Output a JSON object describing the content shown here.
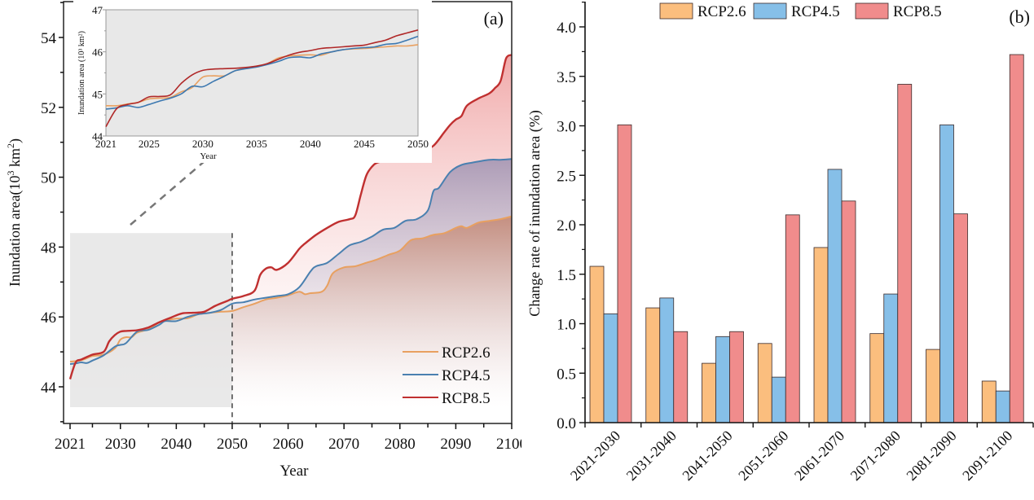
{
  "chart_data": [
    {
      "panel": "(a)",
      "type": "line",
      "title": "",
      "panel_label": "(a)",
      "xlabel": "Year",
      "ylabel": "Inundation area(10³ km²)",
      "xlim": [
        2021,
        2100
      ],
      "ylim": [
        43,
        55
      ],
      "xticks": [
        "2021",
        "2030",
        "2040",
        "2050",
        "2060",
        "2070",
        "2080",
        "2090",
        "2100"
      ],
      "yticks": [
        "44",
        "46",
        "48",
        "50",
        "52",
        "54"
      ],
      "legend_position": "bottom-right",
      "grid": false,
      "highlight_region": {
        "x": [
          2021,
          2050
        ],
        "y_top": 48.4,
        "divider_year": 2050
      },
      "series": [
        {
          "name": "RCP2.6",
          "color": "#E8A060",
          "x": [
            2021,
            2023,
            2025,
            2027,
            2029,
            2030,
            2031,
            2032,
            2033,
            2035,
            2037,
            2038,
            2040,
            2042,
            2044,
            2046,
            2048,
            2050,
            2052,
            2054,
            2056,
            2058,
            2060,
            2062,
            2063,
            2064,
            2066,
            2067,
            2068,
            2070,
            2072,
            2074,
            2076,
            2078,
            2080,
            2082,
            2084,
            2086,
            2088,
            2090,
            2091,
            2092,
            2094,
            2096,
            2098,
            2100
          ],
          "y": [
            44.72,
            44.76,
            44.88,
            44.92,
            45.1,
            45.35,
            45.42,
            45.42,
            45.55,
            45.65,
            45.85,
            45.9,
            45.95,
            45.96,
            46.08,
            46.12,
            46.15,
            46.17,
            46.28,
            46.38,
            46.5,
            46.55,
            46.62,
            46.72,
            46.65,
            46.68,
            46.72,
            46.9,
            47.25,
            47.42,
            47.45,
            47.55,
            47.65,
            47.78,
            47.9,
            48.2,
            48.25,
            48.35,
            48.4,
            48.55,
            48.6,
            48.55,
            48.7,
            48.75,
            48.8,
            48.88
          ]
        },
        {
          "name": "RCP4.5",
          "color": "#4A80B0",
          "x": [
            2021,
            2022,
            2023,
            2024,
            2025,
            2027,
            2029,
            2030,
            2031,
            2033,
            2035,
            2037,
            2038,
            2040,
            2042,
            2044,
            2046,
            2048,
            2050,
            2052,
            2054,
            2056,
            2058,
            2060,
            2062,
            2064,
            2065,
            2067,
            2069,
            2071,
            2073,
            2075,
            2077,
            2079,
            2081,
            2083,
            2085,
            2086,
            2087,
            2089,
            2091,
            2093,
            2096,
            2098,
            2100
          ],
          "y": [
            44.65,
            44.67,
            44.7,
            44.68,
            44.75,
            44.9,
            45.15,
            45.2,
            45.25,
            45.58,
            45.63,
            45.78,
            45.88,
            45.88,
            46.0,
            46.08,
            46.12,
            46.2,
            46.38,
            46.42,
            46.5,
            46.55,
            46.6,
            46.65,
            46.85,
            47.3,
            47.45,
            47.55,
            47.8,
            48.05,
            48.15,
            48.3,
            48.5,
            48.55,
            48.75,
            48.8,
            49.05,
            49.6,
            49.7,
            50.15,
            50.35,
            50.42,
            50.5,
            50.5,
            50.52
          ]
        },
        {
          "name": "RCP8.5",
          "color": "#C03030",
          "x": [
            2021,
            2022,
            2023,
            2025,
            2027,
            2028,
            2029,
            2030,
            2031,
            2033,
            2035,
            2037,
            2039,
            2041,
            2043,
            2045,
            2047,
            2049,
            2050,
            2052,
            2054,
            2055,
            2056,
            2057,
            2058,
            2060,
            2062,
            2063,
            2065,
            2067,
            2069,
            2071,
            2072,
            2073,
            2074,
            2075,
            2076,
            2078,
            2080,
            2082,
            2084,
            2086,
            2088,
            2089,
            2090,
            2091,
            2092,
            2094,
            2096,
            2097,
            2098,
            2099,
            2100
          ],
          "y": [
            44.22,
            44.7,
            44.78,
            44.92,
            45.0,
            45.3,
            45.48,
            45.58,
            45.6,
            45.62,
            45.7,
            45.85,
            45.98,
            46.1,
            46.12,
            46.15,
            46.32,
            46.45,
            46.52,
            46.6,
            46.75,
            47.2,
            47.38,
            47.42,
            47.35,
            47.55,
            47.95,
            48.1,
            48.35,
            48.55,
            48.72,
            48.8,
            48.9,
            49.5,
            50.05,
            50.3,
            50.42,
            50.48,
            50.5,
            50.6,
            50.75,
            50.9,
            51.3,
            51.5,
            51.65,
            51.75,
            52.05,
            52.25,
            52.4,
            52.55,
            52.75,
            53.4,
            53.5
          ]
        }
      ],
      "inset": {
        "type": "line",
        "xlabel": "Year",
        "ylabel": "Inundation area (10³ km²)",
        "xlim": [
          2021,
          2050
        ],
        "ylim": [
          44,
          47
        ],
        "xticks": [
          "2021",
          "2025",
          "2030",
          "2035",
          "2040",
          "2045",
          "2050"
        ],
        "yticks": [
          "44",
          "45",
          "46",
          "47"
        ],
        "series": [
          {
            "name": "RCP2.6",
            "color": "#E8A060",
            "x": [
              2021,
              2022,
              2023,
              2024,
              2025,
              2026,
              2027,
              2028,
              2029,
              2030,
              2031,
              2032,
              2033,
              2034,
              2035,
              2036,
              2037,
              2038,
              2039,
              2040,
              2041,
              2042,
              2043,
              2044,
              2045,
              2046,
              2047,
              2048,
              2049,
              2050
            ],
            "y": [
              44.72,
              44.72,
              44.76,
              44.8,
              44.88,
              44.9,
              44.92,
              45.05,
              45.15,
              45.4,
              45.43,
              45.43,
              45.55,
              45.62,
              45.66,
              45.72,
              45.85,
              45.9,
              45.92,
              45.93,
              45.92,
              46.0,
              46.05,
              46.07,
              46.08,
              46.1,
              46.12,
              46.14,
              46.14,
              46.17
            ]
          },
          {
            "name": "RCP4.5",
            "color": "#3C78B0",
            "x": [
              2021,
              2022,
              2023,
              2024,
              2025,
              2026,
              2027,
              2028,
              2029,
              2030,
              2031,
              2032,
              2033,
              2034,
              2035,
              2036,
              2037,
              2038,
              2039,
              2040,
              2041,
              2042,
              2043,
              2044,
              2045,
              2046,
              2047,
              2048,
              2049,
              2050
            ],
            "y": [
              44.64,
              44.67,
              44.72,
              44.68,
              44.75,
              44.83,
              44.9,
              45.0,
              45.18,
              45.17,
              45.3,
              45.42,
              45.55,
              45.6,
              45.64,
              45.7,
              45.77,
              45.86,
              45.88,
              45.86,
              45.95,
              46.0,
              46.05,
              46.08,
              46.1,
              46.12,
              46.18,
              46.2,
              46.28,
              46.37
            ]
          },
          {
            "name": "RCP8.5",
            "color": "#B02828",
            "x": [
              2021,
              2022,
              2023,
              2024,
              2025,
              2026,
              2027,
              2028,
              2029,
              2030,
              2031,
              2032,
              2033,
              2034,
              2035,
              2036,
              2037,
              2038,
              2039,
              2040,
              2041,
              2042,
              2043,
              2044,
              2045,
              2046,
              2047,
              2048,
              2049,
              2050
            ],
            "y": [
              44.22,
              44.65,
              44.75,
              44.8,
              44.93,
              44.94,
              44.98,
              45.25,
              45.45,
              45.56,
              45.59,
              45.6,
              45.61,
              45.63,
              45.66,
              45.72,
              45.82,
              45.92,
              45.99,
              46.03,
              46.08,
              46.1,
              46.12,
              46.14,
              46.16,
              46.22,
              46.28,
              46.38,
              46.45,
              46.52
            ]
          }
        ]
      }
    },
    {
      "panel": "(b)",
      "type": "bar",
      "title": "",
      "panel_label": "(b)",
      "xlabel": "",
      "ylabel": "Change rate of inundation area  (%)",
      "ylim": [
        0,
        4.25
      ],
      "yticks": [
        "0.0",
        "0.5",
        "1.0",
        "1.5",
        "2.0",
        "2.5",
        "3.0",
        "3.5",
        "4.0"
      ],
      "legend_position": "top",
      "grid": false,
      "categories": [
        "2021-2030",
        "2031-2040",
        "2041-2050",
        "2051-2060",
        "2061-2070",
        "2071-2080",
        "2081-2090",
        "2091-2100"
      ],
      "series": [
        {
          "name": "RCP2.6",
          "color": "#FBBE7E",
          "values": [
            1.58,
            1.16,
            0.6,
            0.8,
            1.77,
            0.9,
            0.74,
            0.42
          ]
        },
        {
          "name": "RCP4.5",
          "color": "#86BFE8",
          "values": [
            1.1,
            1.26,
            0.87,
            0.46,
            2.56,
            1.3,
            3.01,
            0.32
          ]
        },
        {
          "name": "RCP8.5",
          "color": "#F08C8C",
          "values": [
            3.01,
            0.92,
            0.92,
            2.1,
            2.24,
            3.42,
            2.11,
            3.72
          ]
        }
      ]
    }
  ]
}
